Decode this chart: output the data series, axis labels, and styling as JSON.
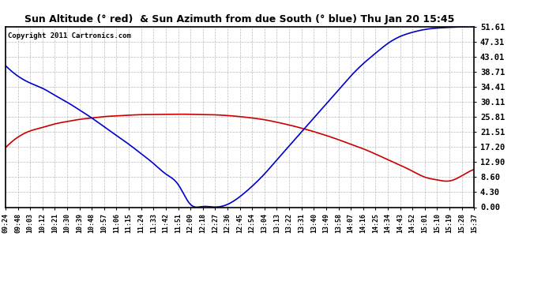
{
  "title": "Sun Altitude (° red)  & Sun Azimuth from due South (° blue) Thu Jan 20 15:45",
  "copyright": "Copyright 2011 Cartronics.com",
  "background_color": "#ffffff",
  "plot_bg_color": "#ffffff",
  "grid_color": "#aaaaaa",
  "yticks": [
    0.0,
    4.3,
    8.6,
    12.9,
    17.2,
    21.51,
    25.81,
    30.11,
    34.41,
    38.71,
    43.01,
    47.31,
    51.61
  ],
  "ymin": 0.0,
  "ymax": 51.61,
  "x_labels": [
    "09:24",
    "09:48",
    "10:03",
    "10:12",
    "10:21",
    "10:30",
    "10:39",
    "10:48",
    "10:57",
    "11:06",
    "11:15",
    "11:24",
    "11:33",
    "11:42",
    "11:51",
    "12:09",
    "12:18",
    "12:27",
    "12:36",
    "12:45",
    "12:54",
    "13:04",
    "13:13",
    "13:22",
    "13:31",
    "13:40",
    "13:49",
    "13:58",
    "14:07",
    "14:16",
    "14:25",
    "14:34",
    "14:43",
    "14:52",
    "15:01",
    "15:10",
    "15:19",
    "15:28",
    "15:37"
  ],
  "red_y": [
    17.0,
    20.0,
    21.8,
    22.8,
    23.8,
    24.5,
    25.1,
    25.5,
    25.9,
    26.1,
    26.3,
    26.45,
    26.5,
    26.55,
    26.6,
    26.55,
    26.5,
    26.4,
    26.2,
    25.9,
    25.5,
    25.0,
    24.3,
    23.5,
    22.6,
    21.6,
    20.5,
    19.3,
    18.0,
    16.7,
    15.2,
    13.6,
    12.0,
    10.3,
    8.6,
    7.8,
    7.5,
    9.0,
    10.8
  ],
  "blue_y": [
    40.5,
    37.5,
    35.5,
    34.0,
    32.0,
    30.0,
    27.8,
    25.5,
    23.0,
    20.5,
    18.0,
    15.3,
    12.5,
    9.5,
    6.5,
    0.8,
    0.2,
    0.05,
    0.8,
    3.0,
    6.0,
    9.5,
    13.5,
    17.5,
    21.5,
    25.5,
    29.5,
    33.5,
    37.5,
    41.0,
    44.0,
    46.8,
    48.8,
    50.0,
    50.8,
    51.2,
    51.4,
    51.55,
    51.61
  ],
  "line_color_red": "#cc0000",
  "line_color_blue": "#0000cc",
  "line_width": 1.2
}
